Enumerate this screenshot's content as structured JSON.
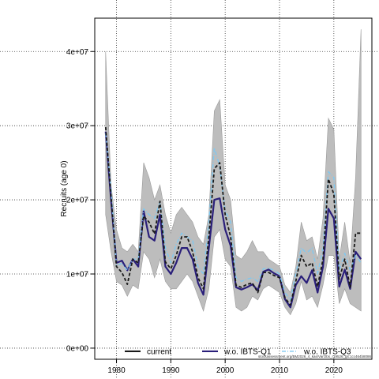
{
  "chart_data": {
    "type": "line",
    "xlabel": "",
    "ylabel": "Recruits (age 0)",
    "xlim": [
      1976,
      2027
    ],
    "ylim": [
      -1500000,
      44500000
    ],
    "x_ticks": [
      1980,
      1990,
      2000,
      2010,
      2020
    ],
    "x_tick_labels": [
      "1980",
      "1990",
      "2000",
      "2010",
      "2020"
    ],
    "y_ticks": [
      0,
      10000000,
      20000000,
      30000000,
      40000000
    ],
    "y_tick_labels": [
      "0e+00",
      "1e+07",
      "2e+07",
      "3e+07",
      "4e+07"
    ],
    "grid": true,
    "legend_placement": "bottom",
    "footnote": "stockassessment.org/BM2026_4_kas/VarObs_r19526_git:1cc464b8086",
    "colors": {
      "current": "#1a1a1a",
      "wo_ibts_q1": "#2a1f7a",
      "wo_ibts_q3": "#7fc8f0",
      "band": "#bdbdbd",
      "band_edge": "#9a9a9a",
      "grid": "#333333"
    },
    "x": [
      1978,
      1979,
      1980,
      1981,
      1982,
      1983,
      1984,
      1985,
      1986,
      1987,
      1988,
      1989,
      1990,
      1991,
      1992,
      1993,
      1994,
      1995,
      1996,
      1997,
      1998,
      1999,
      2000,
      2001,
      2002,
      2003,
      2004,
      2005,
      2006,
      2007,
      2008,
      2009,
      2010,
      2011,
      2012,
      2013,
      2014,
      2015,
      2016,
      2017,
      2018,
      2019,
      2020,
      2021,
      2022,
      2023,
      2024,
      2025
    ],
    "band_lower": [
      18000000,
      13000000,
      9000000,
      8500000,
      7000000,
      8500000,
      8000000,
      13000000,
      12000000,
      9500000,
      12000000,
      9000000,
      8000000,
      8000000,
      9000000,
      10000000,
      9000000,
      7000000,
      5000000,
      8000000,
      15000000,
      16000000,
      12000000,
      11000000,
      5500000,
      5000000,
      5500000,
      7000000,
      6500000,
      8000000,
      8500000,
      8000000,
      7500000,
      5500000,
      4500000,
      6000000,
      9000000,
      6500000,
      7000000,
      5500000,
      8500000,
      12500000,
      12500000,
      6000000,
      8000000,
      6000000,
      5500000,
      5000000
    ],
    "band_upper": [
      40000000,
      22000000,
      16000000,
      13500000,
      13000000,
      14000000,
      13000000,
      25000000,
      23000000,
      20000000,
      22000000,
      18000000,
      15500000,
      18000000,
      19000000,
      18000000,
      17000000,
      15000000,
      14000000,
      18000000,
      32000000,
      33500000,
      22000000,
      20000000,
      12500000,
      12000000,
      13000000,
      14500000,
      13000000,
      13000000,
      12000000,
      11500000,
      11000000,
      8500000,
      7500000,
      11000000,
      17000000,
      14500000,
      15000000,
      12000000,
      17500000,
      31000000,
      29500000,
      12000000,
      17000000,
      11500000,
      23000000,
      43000000
    ],
    "series": [
      {
        "name": "current",
        "values": [
          29800000,
          20500000,
          11000000,
          10200000,
          8600000,
          12000000,
          11500000,
          17800000,
          17000000,
          15400000,
          19800000,
          11600000,
          10700000,
          12500000,
          15000000,
          15000000,
          13000000,
          9500000,
          8000000,
          15000000,
          24200000,
          25000000,
          18000000,
          15000000,
          8500000,
          8200000,
          8600000,
          8800000,
          7500000,
          10200000,
          10200000,
          9800000,
          9500000,
          6800000,
          5800000,
          9000000,
          12500000,
          11000000,
          11500000,
          8300000,
          12000000,
          22800000,
          20800000,
          9300000,
          12000000,
          8200000,
          15500000,
          15500000
        ]
      },
      {
        "name": "w.o. IBTS-Q1",
        "values": [
          29200000,
          20000000,
          11500000,
          11800000,
          10500000,
          12000000,
          11000000,
          18500000,
          15000000,
          14500000,
          18000000,
          11000000,
          10000000,
          11500000,
          13500000,
          13500000,
          12000000,
          8800000,
          7200000,
          13500000,
          20000000,
          20200000,
          16000000,
          13800000,
          8200000,
          7900000,
          8200000,
          8600000,
          7800000,
          10300000,
          10600000,
          10100000,
          9700000,
          6600000,
          5500000,
          8500000,
          9700000,
          8800000,
          10500000,
          7500000,
          11000000,
          18800000,
          17500000,
          8300000,
          10600000,
          8000000,
          13000000,
          12000000
        ]
      },
      {
        "name": "w.o. IBTS-Q3",
        "values": [
          29000000,
          21500000,
          11200000,
          11400000,
          10500000,
          12000000,
          12000000,
          18800000,
          18000000,
          17500000,
          19800000,
          13500000,
          11500000,
          14000000,
          15500000,
          15000000,
          14500000,
          11000000,
          10000000,
          17000000,
          27000000,
          24500000,
          18500000,
          17000000,
          9500000,
          9000000,
          9300000,
          9500000,
          9000000,
          10700000,
          10800000,
          10500000,
          10000000,
          7500000,
          6500000,
          10000000,
          13500000,
          12800000,
          13500000,
          10000000,
          13500000,
          23800000,
          23000000,
          10500000,
          12800000,
          10500000,
          12500000,
          11500000
        ]
      }
    ]
  }
}
